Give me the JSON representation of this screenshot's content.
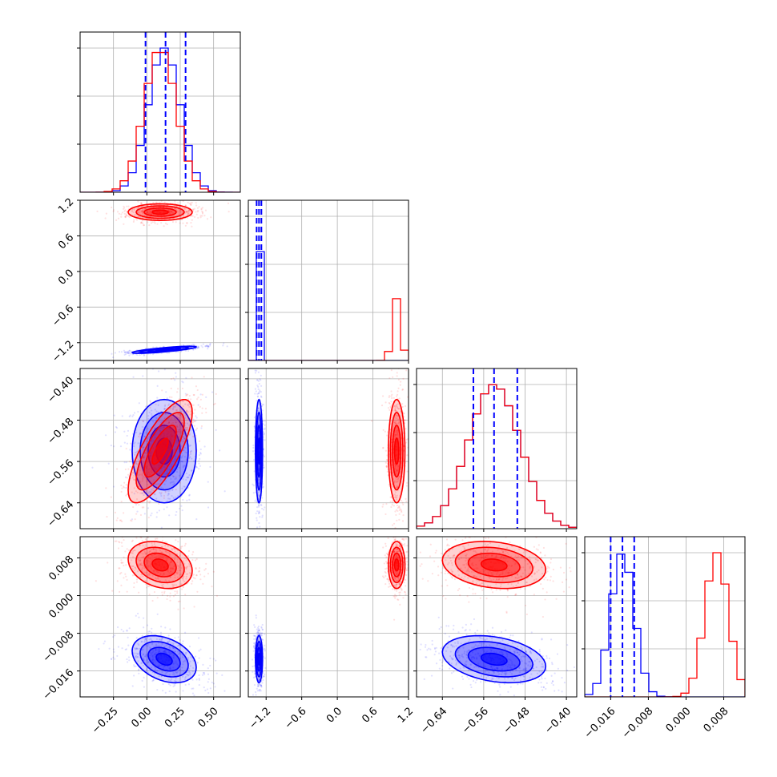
{
  "chart_data": {
    "type": "corner",
    "colors": {
      "blue": "#0000ff",
      "red": "#ff0000"
    },
    "series": [
      {
        "color": "blue",
        "mean": [
          0.13,
          -1.32,
          -0.54,
          -0.0135
        ],
        "sd": [
          0.12,
          0.03,
          0.05,
          0.0025
        ],
        "corr": [
          [
            0,
            1,
            0.8
          ],
          [
            0,
            3,
            -0.35
          ],
          [
            2,
            3,
            -0.3
          ]
        ],
        "quantiles": [
          [
            -0.01,
            0.14,
            0.29
          ],
          [
            -1.36,
            -1.32,
            -1.28
          ],
          [
            -0.58,
            -0.54,
            -0.495
          ],
          [
            -0.016,
            -0.0135,
            -0.011
          ]
        ]
      },
      {
        "color": "red",
        "mean": [
          0.1,
          1.0,
          -0.54,
          0.0065
        ],
        "sd": [
          0.12,
          0.07,
          0.05,
          0.0025
        ],
        "corr": [
          [
            0,
            2,
            0.75
          ],
          [
            0,
            3,
            -0.25
          ],
          [
            2,
            3,
            -0.2
          ]
        ]
      }
    ],
    "axes": [
      {
        "range": [
          -0.5,
          0.7
        ],
        "ticks": [
          "−0.25",
          "0.00",
          "0.25",
          "0.50"
        ],
        "tick_values": [
          -0.25,
          0,
          0.25,
          0.5
        ]
      },
      {
        "range": [
          -1.5,
          1.2
        ],
        "ticks": [
          "−1.2",
          "−0.6",
          "0.0",
          "0.6",
          "1.2"
        ],
        "tick_values": [
          -1.2,
          -0.6,
          0,
          0.6,
          1.2
        ]
      },
      {
        "range": [
          -0.69,
          -0.38
        ],
        "ticks": [
          "−0.64",
          "−0.56",
          "−0.48",
          "−0.40"
        ],
        "tick_values": [
          -0.64,
          -0.56,
          -0.48,
          -0.4
        ]
      },
      {
        "range": [
          -0.0215,
          0.0125
        ],
        "ticks": [
          "−0.016",
          "−0.008",
          "0.000",
          "0.008"
        ],
        "tick_values": [
          -0.016,
          -0.008,
          0,
          0.008
        ]
      }
    ],
    "grid": true
  }
}
